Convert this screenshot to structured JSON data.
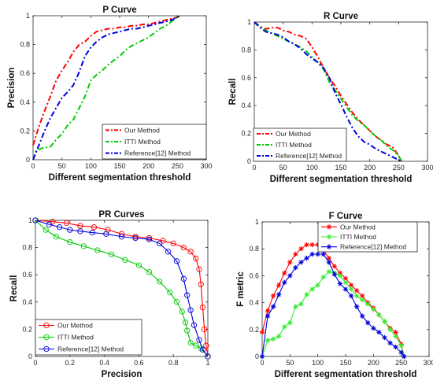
{
  "chart_data": [
    {
      "type": "line",
      "title": "P Curve",
      "xlabel": "Different segmentation threshold",
      "ylabel": "Precision",
      "xlim": [
        0,
        300
      ],
      "ylim": [
        0,
        1
      ],
      "xticks": [
        "0",
        "50",
        "100",
        "150",
        "200",
        "250",
        "300"
      ],
      "yticks": [
        "0",
        "0.2",
        "0.4",
        "0.6",
        "0.8",
        "1"
      ],
      "legend_position": "bottom-right",
      "series": [
        {
          "name": "Our Method",
          "color": "#ff0000",
          "dash": "dash-dot",
          "x": [
            0,
            10,
            20,
            30,
            40,
            50,
            60,
            70,
            80,
            90,
            100,
            110,
            120,
            130,
            140,
            150,
            160,
            170,
            180,
            190,
            200,
            210,
            220,
            230,
            240,
            250,
            255
          ],
          "y": [
            0.1,
            0.23,
            0.34,
            0.44,
            0.55,
            0.62,
            0.68,
            0.75,
            0.8,
            0.82,
            0.86,
            0.89,
            0.9,
            0.91,
            0.91,
            0.92,
            0.92,
            0.93,
            0.93,
            0.94,
            0.94,
            0.95,
            0.96,
            0.97,
            0.98,
            0.99,
            1.0
          ]
        },
        {
          "name": "ITTI Method",
          "color": "#00cc00",
          "dash": "dash-dot",
          "x": [
            0,
            5,
            15,
            30,
            40,
            50,
            60,
            70,
            80,
            90,
            100,
            110,
            120,
            130,
            140,
            150,
            160,
            170,
            180,
            190,
            200,
            210,
            220,
            230,
            240,
            250,
            255
          ],
          "y": [
            0.0,
            0.06,
            0.08,
            0.09,
            0.14,
            0.18,
            0.24,
            0.28,
            0.36,
            0.44,
            0.55,
            0.59,
            0.62,
            0.66,
            0.69,
            0.72,
            0.76,
            0.79,
            0.81,
            0.83,
            0.85,
            0.88,
            0.91,
            0.93,
            0.96,
            0.99,
            1.0
          ]
        },
        {
          "name": "Reference[12] Method",
          "color": "#0000dd",
          "dash": "dash-dot",
          "x": [
            0,
            10,
            20,
            30,
            40,
            50,
            60,
            70,
            80,
            90,
            100,
            110,
            120,
            130,
            140,
            150,
            160,
            170,
            180,
            190,
            200,
            210,
            220,
            230,
            240,
            250,
            255
          ],
          "y": [
            0.0,
            0.1,
            0.2,
            0.29,
            0.36,
            0.43,
            0.47,
            0.52,
            0.61,
            0.72,
            0.78,
            0.82,
            0.85,
            0.87,
            0.88,
            0.89,
            0.9,
            0.91,
            0.91,
            0.92,
            0.93,
            0.94,
            0.95,
            0.96,
            0.97,
            0.99,
            1.0
          ]
        }
      ]
    },
    {
      "type": "line",
      "title": "R Curve",
      "xlabel": "Different segmentation threshold",
      "ylabel": "Recall",
      "xlim": [
        0,
        300
      ],
      "ylim": [
        0,
        1
      ],
      "xticks": [
        "0",
        "50",
        "100",
        "150",
        "200",
        "250",
        "300"
      ],
      "yticks": [
        "0",
        "0.2",
        "0.4",
        "0.6",
        "0.8",
        "1"
      ],
      "legend_position": "bottom-right",
      "series": [
        {
          "name": "Our Method",
          "color": "#ff0000",
          "dash": "dash-dot",
          "x": [
            0,
            10,
            20,
            30,
            40,
            50,
            60,
            70,
            80,
            90,
            100,
            110,
            120,
            130,
            140,
            150,
            160,
            170,
            180,
            190,
            200,
            210,
            220,
            230,
            240,
            250,
            255
          ],
          "y": [
            1.0,
            0.97,
            0.95,
            0.96,
            0.96,
            0.94,
            0.93,
            0.91,
            0.9,
            0.88,
            0.82,
            0.75,
            0.67,
            0.6,
            0.54,
            0.47,
            0.41,
            0.35,
            0.3,
            0.26,
            0.22,
            0.18,
            0.15,
            0.12,
            0.1,
            0.04,
            0.0
          ]
        },
        {
          "name": "ITTI Method",
          "color": "#00cc00",
          "dash": "dash-dot",
          "x": [
            0,
            10,
            20,
            30,
            40,
            50,
            60,
            70,
            80,
            90,
            100,
            110,
            120,
            130,
            140,
            150,
            160,
            170,
            180,
            190,
            200,
            210,
            220,
            230,
            240,
            250,
            255
          ],
          "y": [
            1.0,
            0.97,
            0.94,
            0.92,
            0.9,
            0.88,
            0.86,
            0.84,
            0.82,
            0.79,
            0.75,
            0.71,
            0.66,
            0.57,
            0.51,
            0.45,
            0.39,
            0.33,
            0.29,
            0.26,
            0.22,
            0.18,
            0.15,
            0.11,
            0.08,
            0.04,
            0.0
          ]
        },
        {
          "name": "Reference[12] Method",
          "color": "#0000dd",
          "dash": "dash-dot",
          "x": [
            0,
            10,
            20,
            30,
            40,
            50,
            60,
            70,
            80,
            90,
            100,
            110,
            120,
            130,
            140,
            150,
            160,
            170,
            180,
            190,
            200,
            210,
            220,
            230,
            240,
            250,
            255
          ],
          "y": [
            1.0,
            0.96,
            0.93,
            0.92,
            0.91,
            0.89,
            0.86,
            0.84,
            0.81,
            0.77,
            0.74,
            0.71,
            0.67,
            0.6,
            0.49,
            0.41,
            0.32,
            0.24,
            0.18,
            0.14,
            0.12,
            0.09,
            0.07,
            0.05,
            0.03,
            0.01,
            0.0
          ]
        }
      ]
    },
    {
      "type": "line",
      "title": "PR Curves",
      "xlabel": "Precision",
      "ylabel": "Recall",
      "xlim": [
        0,
        1
      ],
      "ylim": [
        0,
        1
      ],
      "xticks": [
        "0",
        "0.2",
        "0.4",
        "0.6",
        "0.8",
        "1"
      ],
      "yticks": [
        "0",
        "0.2",
        "0.4",
        "0.6",
        "0.8",
        "1"
      ],
      "legend_position": "bottom-left",
      "marker": "circle",
      "series": [
        {
          "name": "Our Method",
          "color": "#ff0000",
          "x": [
            0.0,
            0.1,
            0.18,
            0.26,
            0.34,
            0.42,
            0.5,
            0.58,
            0.66,
            0.74,
            0.8,
            0.86,
            0.9,
            0.93,
            0.95,
            0.96,
            0.97,
            0.98,
            0.99,
            1.0
          ],
          "y": [
            1.0,
            0.99,
            0.98,
            0.96,
            0.95,
            0.93,
            0.9,
            0.88,
            0.87,
            0.85,
            0.83,
            0.8,
            0.77,
            0.72,
            0.64,
            0.53,
            0.36,
            0.2,
            0.08,
            0.0
          ]
        },
        {
          "name": "ITTI Method",
          "color": "#00cc00",
          "x": [
            0.0,
            0.06,
            0.12,
            0.2,
            0.28,
            0.36,
            0.44,
            0.52,
            0.6,
            0.66,
            0.72,
            0.78,
            0.82,
            0.85,
            0.87,
            0.88,
            0.9,
            0.93,
            0.96,
            1.0
          ],
          "y": [
            1.0,
            0.93,
            0.88,
            0.84,
            0.81,
            0.78,
            0.75,
            0.71,
            0.67,
            0.62,
            0.55,
            0.47,
            0.4,
            0.33,
            0.25,
            0.19,
            0.1,
            0.08,
            0.06,
            0.0
          ]
        },
        {
          "name": "Reference[12] Method",
          "color": "#0000dd",
          "x": [
            0.0,
            0.08,
            0.14,
            0.2,
            0.26,
            0.33,
            0.41,
            0.5,
            0.58,
            0.66,
            0.72,
            0.77,
            0.82,
            0.86,
            0.88,
            0.9,
            0.92,
            0.95,
            0.97,
            1.0
          ],
          "y": [
            1.0,
            0.97,
            0.95,
            0.93,
            0.92,
            0.91,
            0.9,
            0.88,
            0.87,
            0.86,
            0.83,
            0.77,
            0.7,
            0.57,
            0.45,
            0.34,
            0.23,
            0.12,
            0.05,
            0.0
          ]
        }
      ]
    },
    {
      "type": "line",
      "title": "F Curve",
      "xlabel": "Different segmentation threshold",
      "ylabel": "F metric",
      "xlim": [
        0,
        300
      ],
      "ylim": [
        0,
        1
      ],
      "xticks": [
        "0",
        "50",
        "100",
        "150",
        "200",
        "250",
        "300"
      ],
      "yticks": [
        "0",
        "0.2",
        "0.4",
        "0.6",
        "0.8",
        "1"
      ],
      "legend_position": "top-right",
      "marker": "star",
      "series": [
        {
          "name": "Our Method",
          "color": "#ff0000",
          "x": [
            0,
            10,
            20,
            30,
            40,
            50,
            60,
            70,
            80,
            90,
            100,
            110,
            120,
            130,
            140,
            150,
            160,
            170,
            180,
            190,
            200,
            210,
            220,
            230,
            240,
            250,
            255
          ],
          "y": [
            0.18,
            0.34,
            0.45,
            0.53,
            0.62,
            0.7,
            0.76,
            0.8,
            0.83,
            0.83,
            0.83,
            0.79,
            0.73,
            0.67,
            0.62,
            0.58,
            0.53,
            0.49,
            0.45,
            0.4,
            0.36,
            0.31,
            0.26,
            0.21,
            0.18,
            0.09,
            0.0
          ]
        },
        {
          "name": "ITTI Method",
          "color": "#33ee33",
          "x": [
            0,
            10,
            20,
            30,
            40,
            50,
            60,
            70,
            80,
            90,
            100,
            110,
            120,
            130,
            140,
            150,
            160,
            170,
            180,
            190,
            200,
            210,
            220,
            230,
            240,
            250,
            255
          ],
          "y": [
            0.0,
            0.12,
            0.13,
            0.15,
            0.22,
            0.25,
            0.37,
            0.39,
            0.46,
            0.5,
            0.53,
            0.59,
            0.63,
            0.62,
            0.6,
            0.55,
            0.5,
            0.45,
            0.42,
            0.39,
            0.35,
            0.31,
            0.26,
            0.2,
            0.15,
            0.08,
            0.0
          ]
        },
        {
          "name": "Reference[12] Method",
          "color": "#0000dd",
          "x": [
            0,
            10,
            20,
            30,
            40,
            50,
            60,
            70,
            80,
            90,
            100,
            110,
            120,
            130,
            140,
            150,
            160,
            170,
            180,
            190,
            200,
            210,
            220,
            230,
            240,
            250,
            255
          ],
          "y": [
            0.0,
            0.3,
            0.37,
            0.46,
            0.55,
            0.6,
            0.66,
            0.7,
            0.73,
            0.76,
            0.76,
            0.76,
            0.7,
            0.61,
            0.54,
            0.5,
            0.45,
            0.37,
            0.3,
            0.25,
            0.21,
            0.18,
            0.14,
            0.1,
            0.07,
            0.03,
            0.0
          ]
        }
      ]
    }
  ]
}
